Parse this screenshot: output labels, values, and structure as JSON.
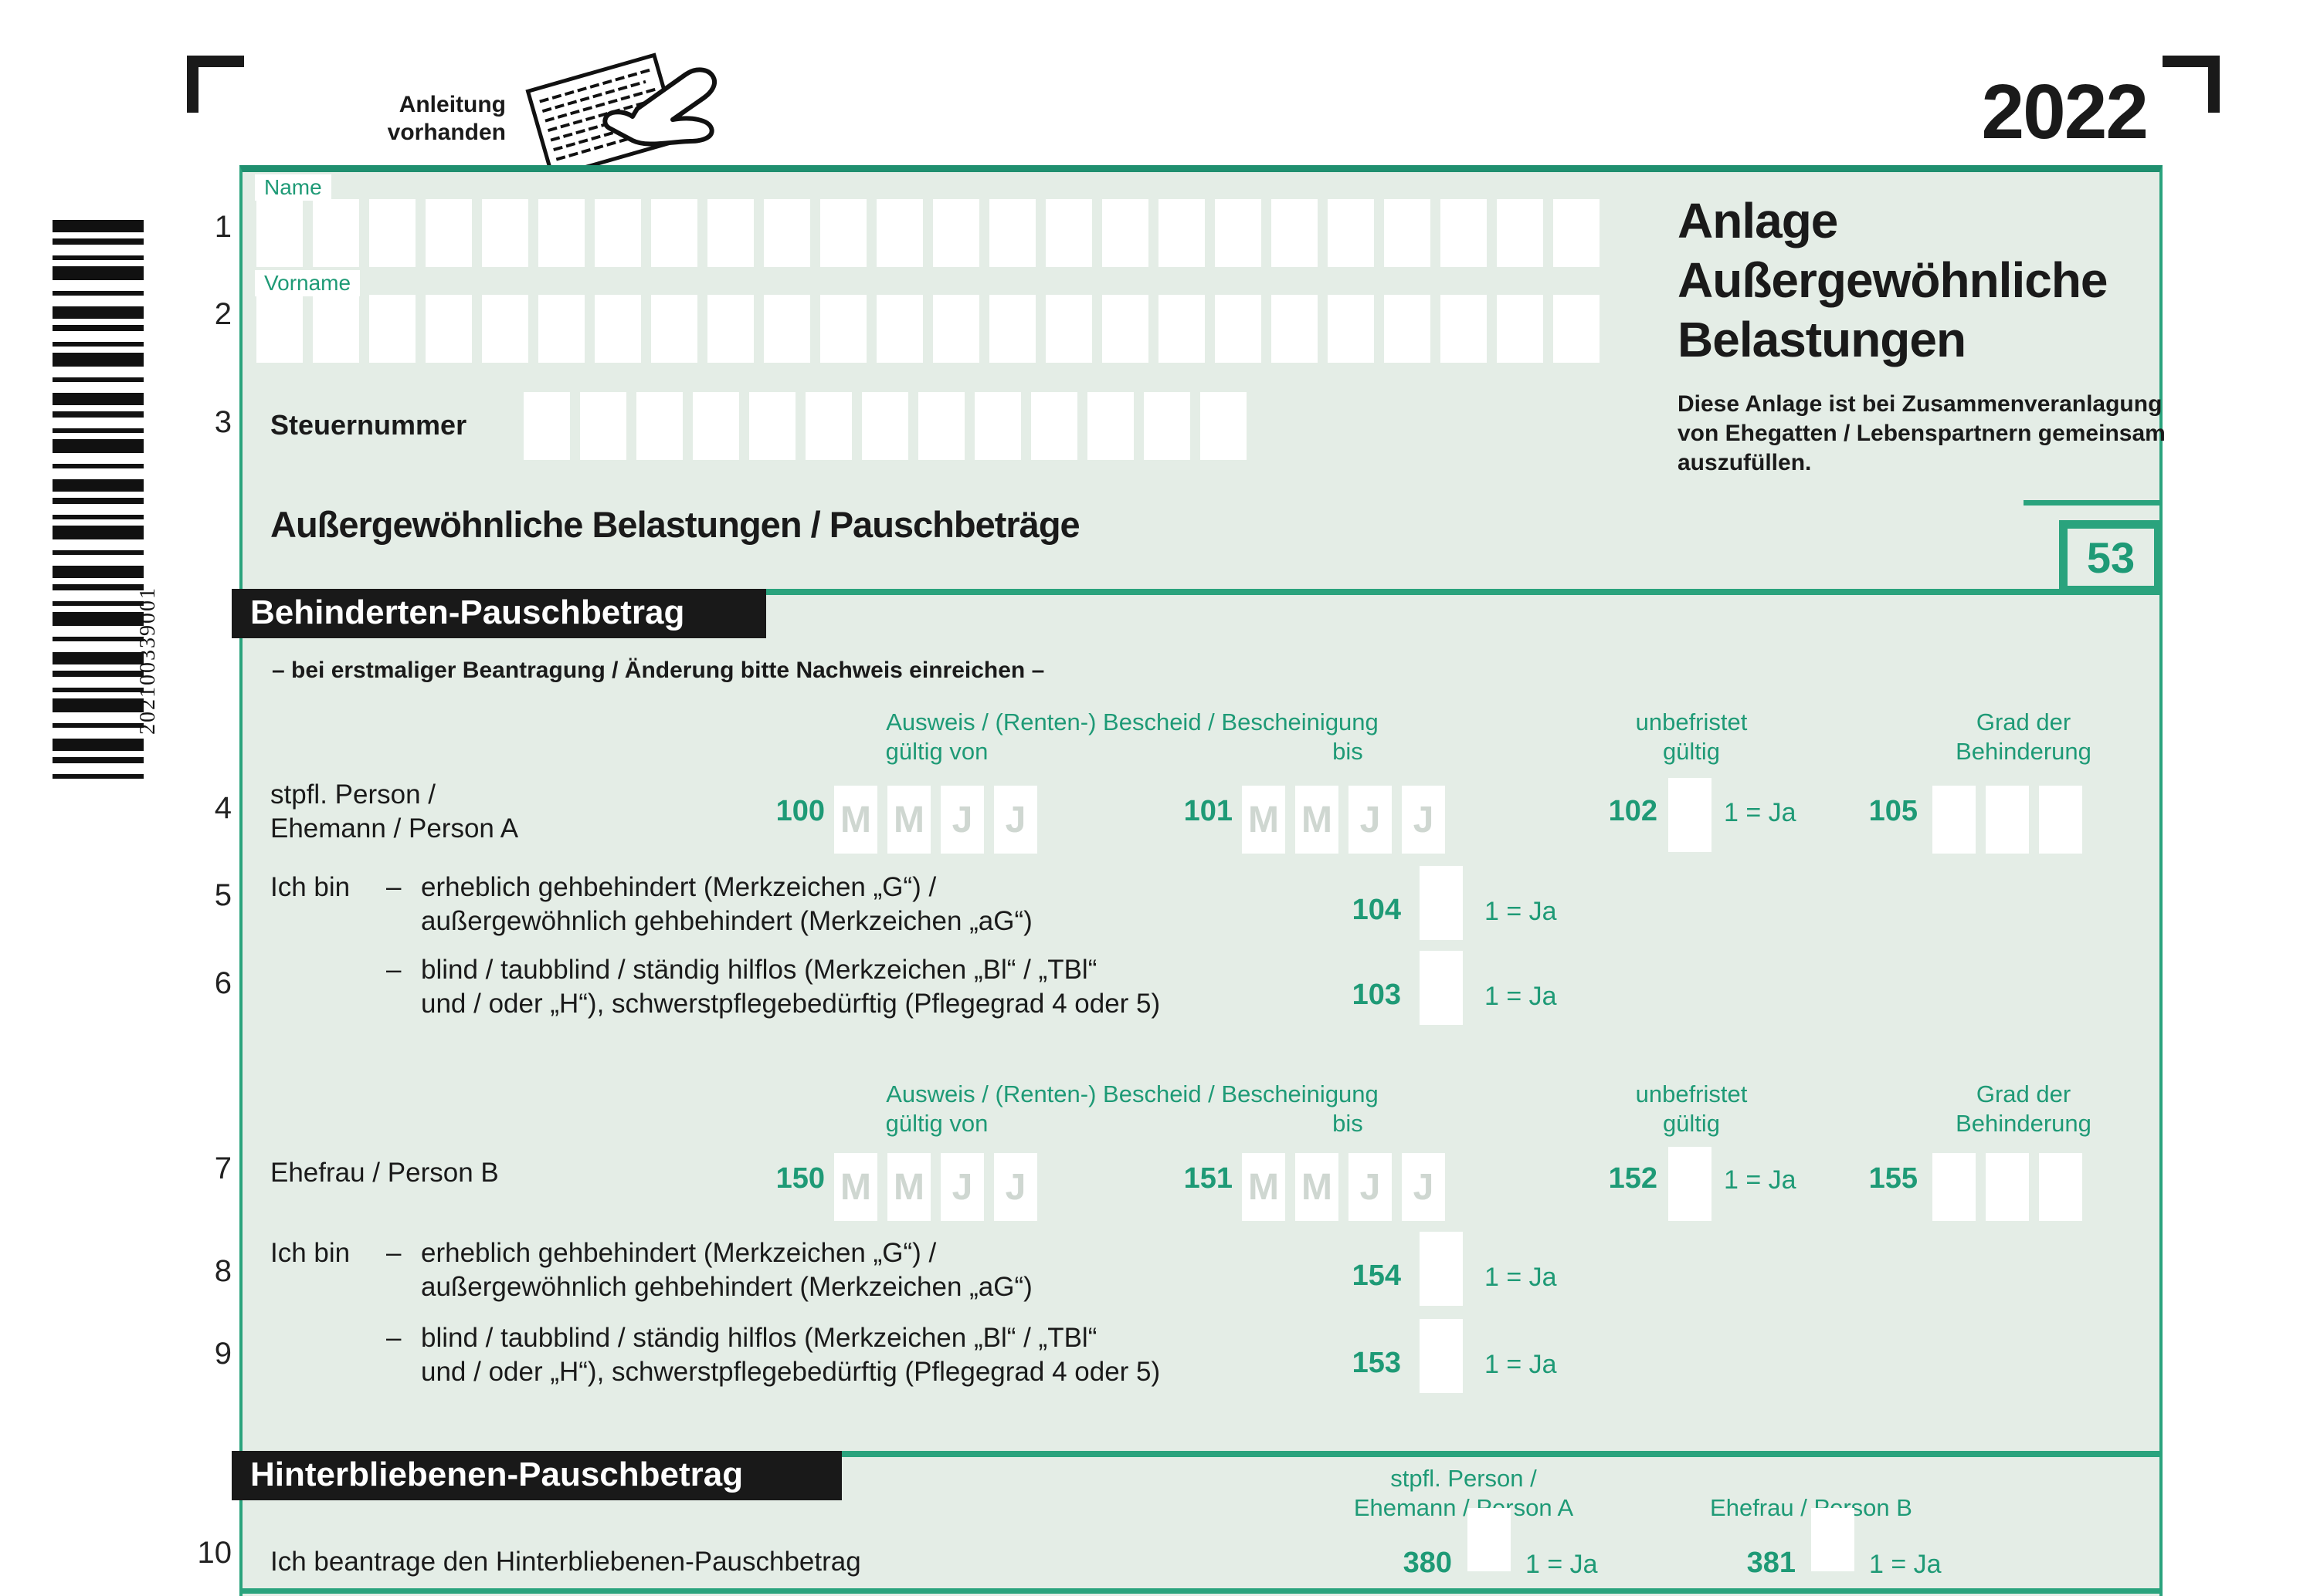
{
  "theme": {
    "accent": "#1e9a76",
    "accent-border": "#2aa37d",
    "panel-bg": "#e4ede6",
    "bar-bg": "#191919",
    "placeholder": "#cfd7d1",
    "ink": "#1a1a1a"
  },
  "page": {
    "year": "2022",
    "form_code": "53",
    "barcode_number": "202100339001",
    "instruction_note_line1": "Anleitung",
    "instruction_note_line2": "vorhanden"
  },
  "row_numbers": [
    "1",
    "2",
    "3",
    "4",
    "5",
    "6",
    "7",
    "8",
    "9",
    "10"
  ],
  "head": {
    "name_label": "Name",
    "vorname_label": "Vorname",
    "steuernummer_label": "Steuernummer",
    "title_line1": "Anlage",
    "title_line2": "Außergewöhnliche",
    "title_line3": "Belastungen",
    "joint_note": "Diese Anlage ist bei Zusammenveranlagung von Ehegatten / Lebenspartnern gemeinsam auszufüllen.",
    "section_heading": "Außergewöhnliche Belastungen / Pauschbeträge"
  },
  "behinderten": {
    "bar_title": "Behinderten-Pauschbetrag",
    "evidence_note": "–  bei erstmaliger Beantragung / Änderung bitte Nachweis einreichen  –",
    "headers": {
      "ausweis": "Ausweis / (Renten-) Bescheid / Bescheinigung",
      "gueltig_von": "gültig von",
      "bis": "bis",
      "unbefristet": "unbefristet",
      "gueltig": "gültig",
      "grad_der": "Grad der",
      "behinderung": "Behinderung"
    },
    "date_placeholders": [
      "M",
      "M",
      "J",
      "J"
    ],
    "ja": "1 = Ja",
    "dash": "–",
    "ich_bin": "Ich bin",
    "person_a": {
      "label_line1": "stpfl. Person /",
      "label_line2": "Ehemann / Person A",
      "von": "100",
      "bis": "101",
      "unbefristet": "102",
      "grad": "105"
    },
    "person_b": {
      "label": "Ehefrau / Person B",
      "von": "150",
      "bis": "151",
      "unbefristet": "152",
      "grad": "155"
    },
    "gehbehindert_line1": "erheblich gehbehindert (Merkzeichen „G“) /",
    "gehbehindert_line2": "außergewöhnlich gehbehindert (Merkzeichen „aG“)",
    "blind_line1": "blind / taubblind / ständig hilflos (Merkzeichen „Bl“ / „TBl“",
    "blind_line2": "und / oder „H“), schwerstpflegebedürftig (Pflegegrad 4 oder 5)",
    "gehbehindert_a": "104",
    "blind_a": "103",
    "gehbehindert_b": "154",
    "blind_b": "153"
  },
  "hinterbliebenen": {
    "bar_title": "Hinterbliebenen-Pauschbetrag",
    "col_a_line1": "stpfl. Person /",
    "col_a_line2": "Ehemann / Person A",
    "col_b": "Ehefrau / Person B",
    "row_label": "Ich beantrage den Hinterbliebenen-Pauschbetrag",
    "field_a": "380",
    "field_b": "381",
    "ja": "1 = Ja"
  }
}
